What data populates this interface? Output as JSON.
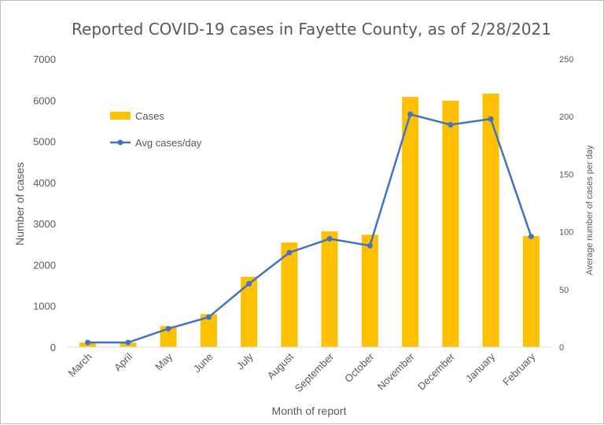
{
  "chart_data": {
    "type": "bar",
    "title": "Reported COVID-19 cases in Fayette County, as of 2/28/2021",
    "xlabel": "Month of report",
    "ylabel": "Number of cases",
    "y2label": "Average number of cases per day",
    "categories": [
      "March",
      "April",
      "May",
      "June",
      "July",
      "August",
      "September",
      "October",
      "November",
      "December",
      "January",
      "February"
    ],
    "ylim": [
      0,
      7000
    ],
    "y2lim": [
      0,
      250
    ],
    "yticks": [
      0,
      1000,
      2000,
      3000,
      4000,
      5000,
      6000,
      7000
    ],
    "y2ticks": [
      0,
      50,
      100,
      150,
      200,
      250
    ],
    "series": [
      {
        "name": "Cases",
        "type": "bar",
        "axis": "left",
        "color": "#ffc000",
        "values": [
          110,
          110,
          510,
          800,
          1710,
          2540,
          2810,
          2730,
          6080,
          5990,
          6160,
          2700
        ]
      },
      {
        "name": "Avg cases/day",
        "type": "line",
        "axis": "right",
        "color": "#4472c4",
        "values": [
          4,
          4,
          16,
          26,
          55,
          82,
          94,
          88,
          202,
          193,
          198,
          96
        ]
      }
    ],
    "legend": "upper-left",
    "grid": false
  }
}
